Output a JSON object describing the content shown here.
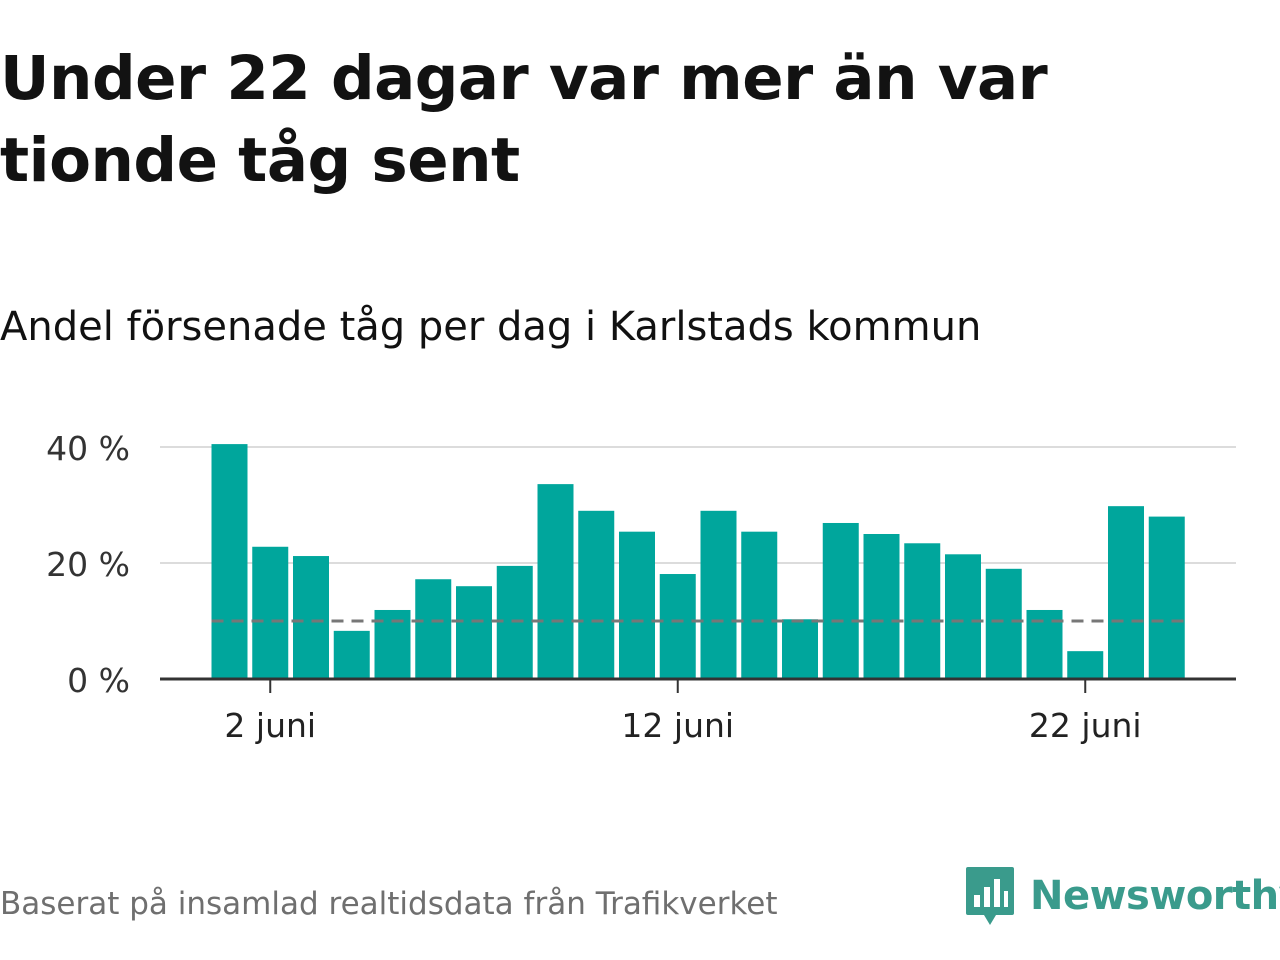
{
  "header": {
    "title": "Under 22 dagar var mer än var tionde tåg sent",
    "subtitle": "Andel försenade tåg per dag i Karlstads kommun"
  },
  "footer": {
    "source": "Baserat på insamlad realtidsdata från Trafikverket",
    "brand": "Newsworthy",
    "brand_icon": "bar-chart-speech-bubble-icon"
  },
  "colors": {
    "bar": "#00a69c",
    "gridline": "#dcdcdc",
    "axis": "#333333",
    "reference_line": "#777777",
    "brand": "#3a9b8c"
  },
  "chart_data": {
    "type": "bar",
    "x": [
      "1 juni",
      "2 juni",
      "3 juni",
      "4 juni",
      "5 juni",
      "6 juni",
      "7 juni",
      "8 juni",
      "9 juni",
      "10 juni",
      "11 juni",
      "12 juni",
      "13 juni",
      "14 juni",
      "15 juni",
      "16 juni",
      "17 juni",
      "18 juni",
      "19 juni",
      "20 juni",
      "21 juni",
      "22 juni",
      "23 juni",
      "24 juni"
    ],
    "values": [
      40.5,
      22.8,
      21.2,
      8.3,
      11.9,
      17.2,
      16.0,
      19.5,
      33.6,
      29.0,
      25.4,
      18.1,
      29.0,
      25.4,
      10.3,
      26.9,
      25.0,
      23.4,
      21.5,
      19.0,
      11.9,
      4.8,
      29.8,
      28.0
    ],
    "reference_value": 10,
    "ylim": [
      0,
      40
    ],
    "yticks": [
      {
        "value": 0,
        "label": "0 %"
      },
      {
        "value": 20,
        "label": "20 %"
      },
      {
        "value": 40,
        "label": "40 %"
      }
    ],
    "xticks": [
      {
        "index": 1,
        "label": "2 juni"
      },
      {
        "index": 11,
        "label": "12 juni"
      },
      {
        "index": 21,
        "label": "22 juni"
      }
    ],
    "grid": true,
    "legend": false
  }
}
